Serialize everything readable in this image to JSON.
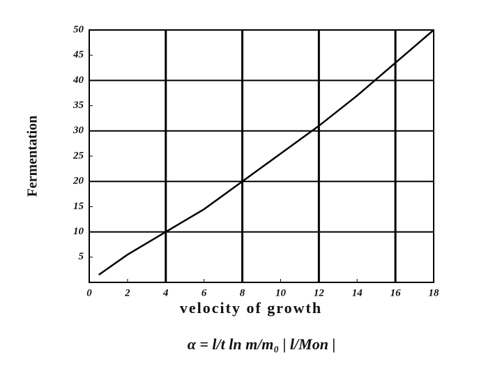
{
  "chart_data": {
    "type": "line",
    "xlabel": "velocity of growth",
    "ylabel": "Fermentation",
    "annotation": "α = l/t ln m/m₀ | l/Mon |",
    "x": [
      0.5,
      2,
      4,
      6,
      8,
      10,
      12,
      14,
      16,
      18
    ],
    "series": [
      {
        "name": "Fermentation",
        "color": "#000000",
        "values": [
          1.5,
          5.5,
          10,
          14.5,
          20,
          25.5,
          31,
          37,
          43.5,
          50
        ]
      }
    ],
    "xlim": [
      0,
      18
    ],
    "ylim": [
      0,
      50
    ],
    "xticks": [
      0,
      2,
      4,
      6,
      8,
      10,
      12,
      14,
      16,
      18
    ],
    "yticks": [
      5,
      10,
      15,
      20,
      25,
      30,
      35,
      40,
      45,
      50
    ],
    "xgrid": [
      4,
      8,
      12,
      16
    ],
    "ygrid": [
      10,
      20,
      30,
      40
    ]
  }
}
